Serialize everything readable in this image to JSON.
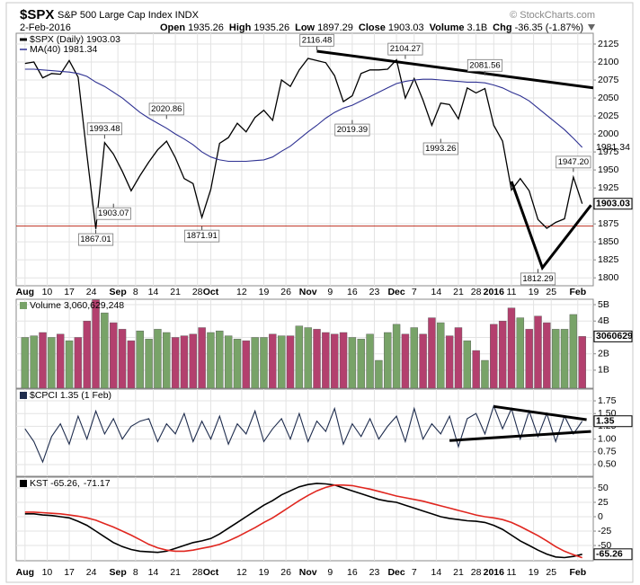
{
  "header": {
    "symbol": "$SPX",
    "name": "S&P 500 Large Cap Index INDX",
    "credit": "© StockCharts.com",
    "date": "2-Feb-2016",
    "quote": [
      {
        "label": "Open",
        "value": "1935.26"
      },
      {
        "label": "High",
        "value": "1935.26"
      },
      {
        "label": "Low",
        "value": "1897.29"
      },
      {
        "label": "Close",
        "value": "1903.03"
      },
      {
        "label": "Volume",
        "value": "3.1B"
      },
      {
        "label": "Chg",
        "value": "-36.35 (-1.87%)"
      }
    ]
  },
  "x_axis": {
    "x": [
      0,
      2,
      4,
      6,
      8,
      10,
      12,
      14,
      16,
      18,
      20,
      22,
      24,
      26,
      28,
      30,
      32,
      34,
      36,
      38,
      40,
      42,
      44,
      46,
      48,
      50,
      52,
      54,
      56,
      58,
      60,
      62,
      64,
      66,
      68,
      70,
      72,
      74,
      76,
      78,
      80,
      82,
      84,
      86,
      88,
      90,
      92,
      94,
      96,
      98,
      100,
      102,
      104,
      106,
      108,
      110,
      112,
      114,
      116,
      118,
      120,
      122,
      124,
      126
    ],
    "xlim": [
      -2,
      128.5
    ],
    "xticks": [
      {
        "value": 0,
        "label": "Aug"
      },
      {
        "value": 5,
        "label": "10"
      },
      {
        "value": 10,
        "label": "17"
      },
      {
        "value": 15,
        "label": "24"
      },
      {
        "value": 21,
        "label": "Sep"
      },
      {
        "value": 25,
        "label": "8"
      },
      {
        "value": 29,
        "label": "14"
      },
      {
        "value": 34,
        "label": "21"
      },
      {
        "value": 39,
        "label": "28"
      },
      {
        "value": 42,
        "label": "Oct"
      },
      {
        "value": 49,
        "label": "12"
      },
      {
        "value": 54,
        "label": "19"
      },
      {
        "value": 59,
        "label": "26"
      },
      {
        "value": 64,
        "label": "Nov"
      },
      {
        "value": 69,
        "label": "9"
      },
      {
        "value": 74,
        "label": "16"
      },
      {
        "value": 79,
        "label": "23"
      },
      {
        "value": 84,
        "label": "Dec"
      },
      {
        "value": 88,
        "label": "7"
      },
      {
        "value": 93,
        "label": "14"
      },
      {
        "value": 98,
        "label": "21"
      },
      {
        "value": 102,
        "label": "28"
      },
      {
        "value": 106,
        "label": "2016"
      },
      {
        "value": 110,
        "label": "11"
      },
      {
        "value": 115,
        "label": "19"
      },
      {
        "value": 119,
        "label": "25"
      },
      {
        "value": 125,
        "label": "Feb"
      }
    ]
  },
  "chart_data": [
    {
      "type": "line",
      "grid": true,
      "series": [
        {
          "name": "$SPX (Daily) 1903.03",
          "color": "#000000",
          "values": [
            2098,
            2100,
            2078,
            2084,
            2083,
            2102,
            2079,
            1971,
            1868,
            1988,
            1972,
            1948,
            1921,
            1942,
            1961,
            1978,
            1990,
            1967,
            1938,
            1931,
            1884,
            1923,
            1987,
            1995,
            2015,
            2003,
            2023,
            2033,
            2019,
            2075,
            2066,
            2089,
            2105,
            2102,
            2099,
            2081,
            2045,
            2053,
            2084,
            2089,
            2089,
            2090,
            2103,
            2050,
            2077,
            2047,
            2012,
            2043,
            2041,
            2021,
            2064,
            2057,
            2063,
            2012,
            1990,
            1922,
            1938,
            1921,
            1881,
            1869,
            1877,
            1882,
            1940,
            1903.03
          ]
        },
        {
          "name": "MA(40) 1981.34",
          "color": "#2e3192",
          "values": [
            2090,
            2090,
            2089,
            2088,
            2087,
            2086,
            2084,
            2080,
            2072,
            2066,
            2058,
            2050,
            2040,
            2030,
            2022,
            2015,
            2008,
            2000,
            1993,
            1985,
            1975,
            1968,
            1964,
            1962,
            1962,
            1962,
            1963,
            1964,
            1968,
            1976,
            1983,
            1993,
            2003,
            2012,
            2022,
            2030,
            2036,
            2040,
            2046,
            2052,
            2058,
            2064,
            2070,
            2073,
            2075,
            2076,
            2076,
            2075,
            2074,
            2073,
            2072,
            2072,
            2071,
            2068,
            2064,
            2058,
            2053,
            2046,
            2036,
            2026,
            2016,
            2006,
            1994,
            1981.34
          ]
        }
      ],
      "ylim": [
        1789,
        2140
      ],
      "yticks": [
        1800,
        1825,
        1850,
        1875,
        1900,
        1925,
        1950,
        1975,
        2000,
        2025,
        2050,
        2075,
        2100,
        2125
      ],
      "hline": {
        "value": 1872,
        "color": "#c0392b"
      },
      "annotations": [
        {
          "x": 16,
          "value": 1867.01
        },
        {
          "x": 18,
          "value": 1993.48
        },
        {
          "x": 20,
          "value": 1903.07
        },
        {
          "x": 32,
          "value": 2020.86
        },
        {
          "x": 40,
          "value": 1871.91
        },
        {
          "x": 66,
          "value": 2116.48
        },
        {
          "x": 74,
          "value": 2019.39
        },
        {
          "x": 86,
          "value": 2104.27
        },
        {
          "x": 94,
          "value": 1993.26
        },
        {
          "x": 104,
          "value": 2081.56
        },
        {
          "x": 116,
          "value": 1812.29
        },
        {
          "x": 124,
          "value": 1947.2,
          "label": "1947.20"
        }
      ],
      "trendlines": [
        {
          "x": [
            66,
            128.5
          ],
          "y": [
            2115,
            2064
          ]
        },
        {
          "x": [
            110,
            117,
            128
          ],
          "y": [
            1934,
            1814,
            1901
          ]
        }
      ]
    },
    {
      "type": "bar",
      "grid": true,
      "up_color": "#78a368",
      "down_color": "#b3406e",
      "series": [
        {
          "name": "Volume 3,060,629,248",
          "values": [
            3.0,
            3.1,
            3.3,
            3.0,
            3.2,
            2.8,
            3.0,
            4.0,
            5.3,
            4.5,
            3.9,
            3.5,
            2.8,
            3.4,
            2.9,
            3.5,
            3.3,
            3.0,
            3.1,
            3.2,
            3.6,
            3.3,
            3.4,
            3.1,
            2.9,
            2.8,
            3.0,
            3.0,
            3.2,
            3.1,
            3.1,
            3.7,
            3.6,
            3.5,
            3.3,
            3.2,
            3.3,
            3.0,
            2.9,
            3.2,
            1.6,
            3.3,
            3.8,
            3.2,
            3.6,
            3.2,
            4.2,
            3.9,
            3.1,
            3.6,
            2.8,
            2.2,
            1.6,
            3.8,
            4.0,
            4.8,
            4.2,
            3.5,
            4.3,
            3.9,
            3.5,
            3.5,
            4.4,
            3.060629248
          ]
        }
      ],
      "value_tag": "3060629",
      "ylim": [
        -0.1,
        5.33
      ],
      "yticks": [
        {
          "value": 1,
          "label": "1B"
        },
        {
          "value": 2,
          "label": "2B"
        },
        {
          "value": 3,
          "label": "3B"
        },
        {
          "value": 4,
          "label": "4B"
        },
        {
          "value": 5,
          "label": "5B"
        }
      ]
    },
    {
      "type": "line",
      "grid": true,
      "series": [
        {
          "name": "$CPCI 1.35 (1 Feb)",
          "color": "#1f2d4e",
          "values": [
            1.2,
            0.95,
            0.55,
            1.05,
            1.3,
            0.9,
            1.45,
            1.0,
            1.55,
            1.1,
            1.4,
            1.0,
            1.25,
            1.35,
            1.4,
            0.95,
            1.3,
            1.1,
            1.5,
            0.95,
            1.35,
            1.0,
            1.45,
            0.9,
            1.3,
            1.1,
            1.55,
            0.95,
            1.2,
            1.4,
            1.0,
            1.5,
            0.95,
            1.35,
            1.15,
            1.6,
            0.9,
            1.3,
            1.05,
            1.4,
            1.0,
            1.25,
            1.45,
            0.95,
            1.6,
            1.0,
            1.3,
            1.1,
            1.45,
            0.85,
            1.4,
            1.5,
            1.1,
            1.65,
            1.2,
            1.6,
            1.0,
            1.55,
            1.05,
            1.5,
            0.95,
            1.45,
            1.1,
            1.35
          ]
        }
      ],
      "ylim": [
        0.27,
        1.98
      ],
      "yticks": [
        {
          "value": 0.5,
          "label": "0.50"
        },
        {
          "value": 0.75,
          "label": "0.75"
        },
        {
          "value": 1,
          "label": "1.00"
        },
        {
          "value": 1.25,
          "label": "1.25"
        },
        {
          "value": 1.5,
          "label": "1.50"
        },
        {
          "value": 1.75,
          "label": "1.75"
        }
      ],
      "trendlines": [
        {
          "x": [
            106,
            127
          ],
          "y": [
            1.64,
            1.38
          ]
        },
        {
          "x": [
            96,
            128
          ],
          "y": [
            0.97,
            1.15
          ]
        }
      ]
    },
    {
      "type": "line",
      "grid": true,
      "series": [
        {
          "name": "KST -65.26,",
          "color": "#000000",
          "values": [
            5,
            5,
            3,
            2,
            0,
            -2,
            -8,
            -15,
            -25,
            -35,
            -45,
            -52,
            -57,
            -60,
            -61,
            -62,
            -60,
            -55,
            -50,
            -45,
            -42,
            -38,
            -30,
            -20,
            -10,
            0,
            10,
            20,
            28,
            38,
            45,
            52,
            56,
            58,
            57,
            55,
            50,
            45,
            40,
            35,
            30,
            27,
            25,
            20,
            15,
            10,
            5,
            0,
            -3,
            -5,
            -7,
            -8,
            -10,
            -15,
            -22,
            -32,
            -42,
            -50,
            -58,
            -65,
            -70,
            -71,
            -69,
            -65.26
          ]
        },
        {
          "name": "-71.17",
          "color": "#e0261f",
          "values": [
            8,
            8,
            7,
            6,
            5,
            3,
            1,
            -2,
            -6,
            -12,
            -18,
            -25,
            -32,
            -40,
            -48,
            -54,
            -58,
            -60,
            -60,
            -58,
            -55,
            -52,
            -48,
            -42,
            -35,
            -27,
            -19,
            -10,
            -2,
            8,
            18,
            28,
            37,
            45,
            51,
            55,
            55,
            54,
            51,
            48,
            44,
            40,
            36,
            33,
            30,
            27,
            23,
            19,
            15,
            11,
            7,
            3,
            0,
            -2,
            -5,
            -10,
            -17,
            -25,
            -33,
            -42,
            -52,
            -60,
            -66,
            -71.17
          ]
        }
      ],
      "ylim": [
        -76.5,
        68.75
      ],
      "yticks": [
        -50,
        -25,
        0,
        25,
        50
      ]
    }
  ]
}
